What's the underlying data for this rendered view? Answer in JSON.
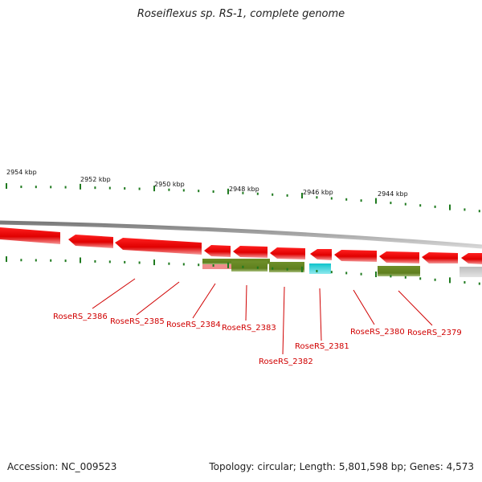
{
  "title": "Roseiflexus sp. RS-1, complete genome",
  "footer": {
    "accession": "Accession: NC_009523",
    "summary": "Topology: circular; Length: 5,801,598 bp; Genes: 4,573"
  },
  "colors": {
    "cds": "#ee0000",
    "cds_light": "#f6a0a0",
    "olive": "#6b8e23",
    "cyan": "#11c8cf",
    "grey": "#c2c2c2",
    "pink": "#ef8c8c",
    "tick": "#1f7a1f",
    "backbone": "#8c8c8c",
    "label": "#d00000"
  },
  "kbp_labels": [
    "2954 kbp",
    "2952 kbp",
    "2950 kbp",
    "2948 kbp",
    "2946 kbp",
    "2944 kbp"
  ],
  "genes": [
    {
      "id": "RoseRS_2386"
    },
    {
      "id": "RoseRS_2385"
    },
    {
      "id": "RoseRS_2384"
    },
    {
      "id": "RoseRS_2383"
    },
    {
      "id": "RoseRS_2382"
    },
    {
      "id": "RoseRS_2381"
    },
    {
      "id": "RoseRS_2380"
    },
    {
      "id": "RoseRS_2379"
    }
  ]
}
